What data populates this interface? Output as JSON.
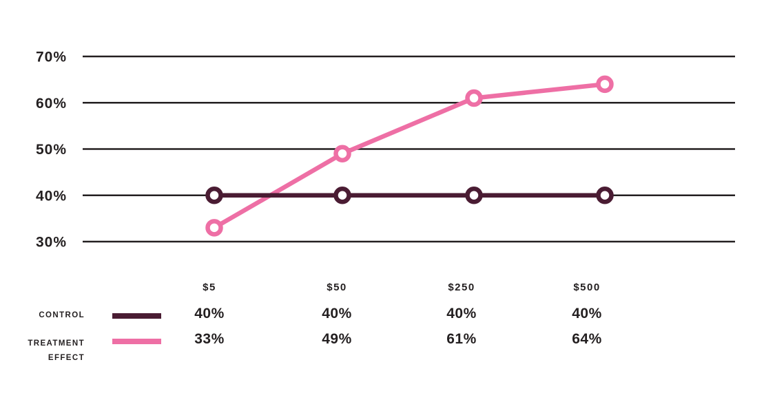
{
  "chart_data": {
    "type": "line",
    "categories": [
      "$5",
      "$50",
      "$250",
      "$500"
    ],
    "series": [
      {
        "name": "CONTROL",
        "values": [
          40,
          40,
          40,
          40
        ],
        "color": "#4a1c33"
      },
      {
        "name": "TREATMENT EFFECT",
        "values": [
          33,
          49,
          61,
          64
        ],
        "color": "#ee6fa5"
      }
    ],
    "title": "",
    "xlabel": "",
    "ylabel": "",
    "ylim": [
      30,
      70
    ],
    "yticks": [
      30,
      40,
      50,
      60,
      70
    ],
    "ytick_labels": [
      "30%",
      "40%",
      "50%",
      "60%",
      "70%"
    ],
    "grid": true,
    "gridline_color": "#231f20",
    "marker_style": "open-circle",
    "legend_position": "bottom-left-table"
  },
  "colors": {
    "background": "#ffffff",
    "text": "#231f20",
    "control": "#4a1c33",
    "treatment": "#ee6fa5",
    "grid": "#231f20"
  },
  "legend": {
    "control_label": "CONTROL",
    "treatment_label_line1": "TREATMENT",
    "treatment_label_line2": "EFFECT"
  },
  "table": {
    "headers": [
      "$5",
      "$50",
      "$250",
      "$500"
    ],
    "control_values": [
      "40%",
      "40%",
      "40%",
      "40%"
    ],
    "treatment_values": [
      "33%",
      "49%",
      "61%",
      "64%"
    ]
  }
}
